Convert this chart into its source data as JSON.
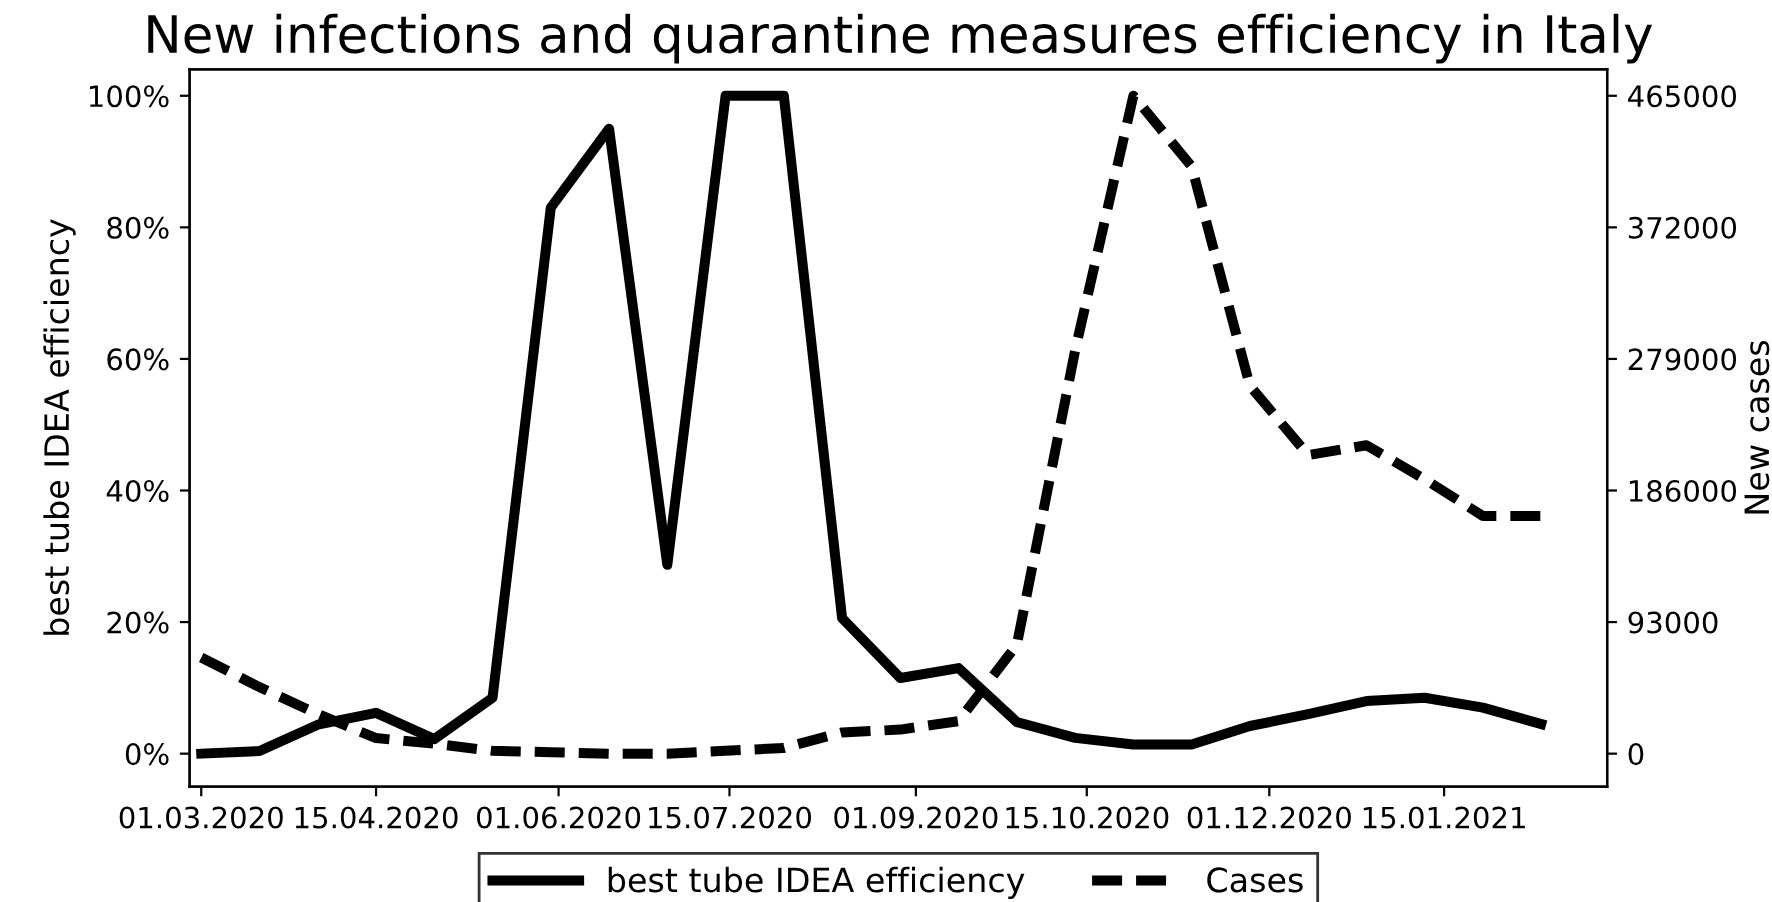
{
  "chart_data": {
    "type": "line",
    "title": "New infections and quarantine measures efficiency in Italy",
    "ylabel": "best tube IDEA efficiency",
    "y2label": "New cases",
    "x": [
      "2020-03-01",
      "2020-03-16",
      "2020-03-31",
      "2020-04-15",
      "2020-04-30",
      "2020-05-15",
      "2020-05-30",
      "2020-06-14",
      "2020-06-29",
      "2020-07-14",
      "2020-07-29",
      "2020-08-13",
      "2020-08-28",
      "2020-09-12",
      "2020-09-27",
      "2020-10-12",
      "2020-10-27",
      "2020-11-11",
      "2020-11-26",
      "2020-12-11",
      "2020-12-26",
      "2021-01-10",
      "2021-01-25",
      "2021-02-09"
    ],
    "series": [
      {
        "name": "best tube IDEA efficiency",
        "color": "#000000",
        "line_style": "solid",
        "values": [
          0,
          0.4,
          4.4,
          6.2,
          2.2,
          8.5,
          83,
          95,
          28.7,
          100,
          100,
          20.6,
          11.5,
          13,
          4.8,
          2.4,
          1.4,
          1.4,
          4.2,
          6,
          8,
          8.5,
          7,
          4.5
        ]
      },
      {
        "name": "Cases",
        "color": "#000000",
        "line_style": "dashed",
        "axis": "y2",
        "values": [
          68000,
          47000,
          28000,
          11000,
          7000,
          2000,
          1000,
          0,
          0,
          2000,
          4000,
          15000,
          17000,
          23000,
          77000,
          285000,
          465000,
          415000,
          260000,
          211000,
          218000,
          194000,
          168000,
          168000
        ]
      }
    ],
    "xlim": [
      "2020-02-27",
      "2021-02-26"
    ],
    "xticks": [
      {
        "value": "2020-03-01",
        "label": "01.03.2020"
      },
      {
        "value": "2020-04-15",
        "label": "15.04.2020"
      },
      {
        "value": "2020-06-01",
        "label": "01.06.2020"
      },
      {
        "value": "2020-07-15",
        "label": "15.07.2020"
      },
      {
        "value": "2020-09-01",
        "label": "01.09.2020"
      },
      {
        "value": "2020-10-15",
        "label": "15.10.2020"
      },
      {
        "value": "2020-12-01",
        "label": "01.12.2020"
      },
      {
        "value": "2021-01-15",
        "label": "15.01.2021"
      }
    ],
    "ylim": [
      -5,
      104
    ],
    "yticks": [
      {
        "value": 0,
        "label": "0%"
      },
      {
        "value": 20,
        "label": "20%"
      },
      {
        "value": 40,
        "label": "40%"
      },
      {
        "value": 60,
        "label": "60%"
      },
      {
        "value": 80,
        "label": "80%"
      },
      {
        "value": 100,
        "label": "100%"
      }
    ],
    "y2lim": [
      -23250,
      483600
    ],
    "y2ticks": [
      0,
      93000,
      186000,
      279000,
      372000,
      465000
    ],
    "legend": "bottom",
    "grid": false,
    "marker": "none"
  }
}
